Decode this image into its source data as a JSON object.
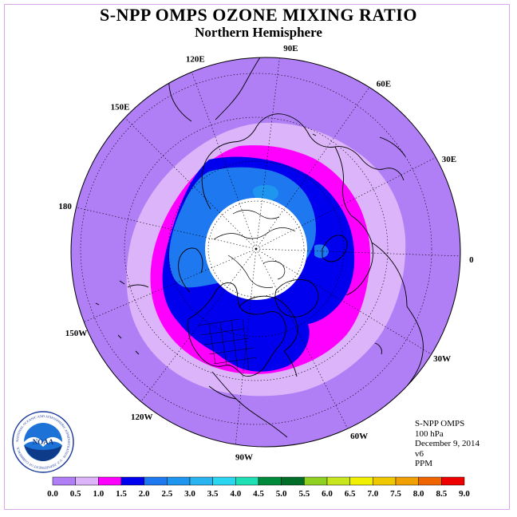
{
  "header": {
    "title": "S-NPP OMPS OZONE MIXING RATIO",
    "subtitle": "Northern Hemisphere"
  },
  "map": {
    "projection": "polar stereographic, north pole",
    "longitude_labels": [
      "90E",
      "60E",
      "30E",
      "0",
      "30W",
      "60W",
      "90W",
      "120W",
      "150W",
      "180",
      "150E",
      "120E"
    ]
  },
  "info_block": {
    "lines": [
      "S-NPP OMPS",
      "100 hPa",
      "December 9, 2014",
      "v6",
      "PPM"
    ]
  },
  "colorbar": {
    "tick_labels": [
      "0.0",
      "0.5",
      "1.0",
      "1.5",
      "2.0",
      "2.5",
      "3.0",
      "3.5",
      "4.0",
      "4.5",
      "5.0",
      "5.5",
      "6.0",
      "6.5",
      "7.0",
      "7.5",
      "8.0",
      "8.5",
      "9.0"
    ],
    "colors": [
      "#b07ef5",
      "#dcb4fa",
      "#ff00ff",
      "#0000ee",
      "#1e78f0",
      "#1e96f0",
      "#28b4f0",
      "#2ad6f0",
      "#1fe0b4",
      "#008a3c",
      "#006e28",
      "#90d020",
      "#c8e61e",
      "#f0f000",
      "#f0c800",
      "#f0a000",
      "#f06400",
      "#ee0000",
      "#7c5030"
    ]
  },
  "logo": {
    "text": "NOAA",
    "ring_text": "NATIONAL OCEANIC AND ATMOSPHERIC ADMINISTRATION · U.S. DEPARTMENT OF COMMERCE"
  }
}
